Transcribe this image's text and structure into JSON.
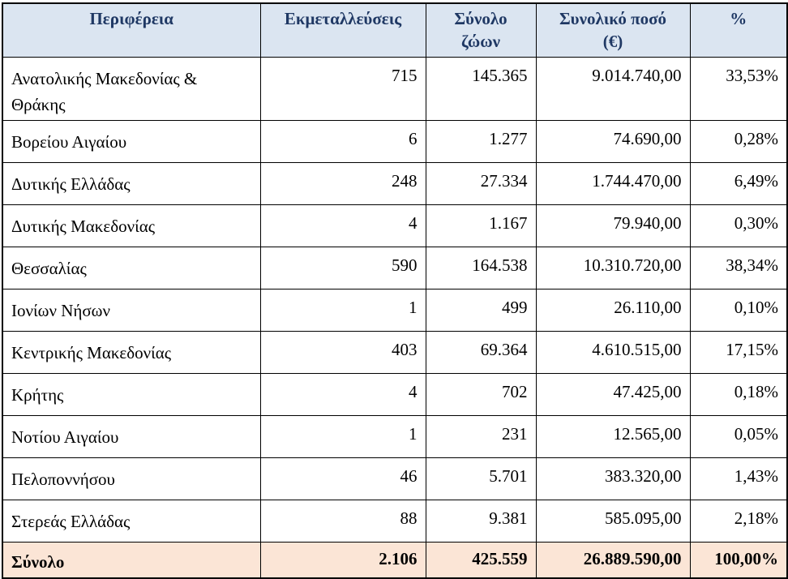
{
  "colors": {
    "header-bg": "#dbe5f1",
    "header-text": "#1f3864",
    "total-bg": "#fbe5d6",
    "border": "#000000"
  },
  "table": {
    "headers": [
      [
        "Περιφέρεια"
      ],
      [
        "Εκμεταλλεύσεις"
      ],
      [
        "Σύνολο",
        "ζώων"
      ],
      [
        "Συνολικό ποσό",
        "(€)"
      ],
      [
        "%"
      ]
    ],
    "rows": [
      {
        "region": "Ανατολικής Μακεδονίας & Θράκης",
        "farms": "715",
        "animals": "145.365",
        "amount": "9.014.740,00",
        "pct": "33,53%"
      },
      {
        "region": "Βορείου Αιγαίου",
        "farms": "6",
        "animals": "1.277",
        "amount": "74.690,00",
        "pct": "0,28%"
      },
      {
        "region": "Δυτικής Ελλάδας",
        "farms": "248",
        "animals": "27.334",
        "amount": "1.744.470,00",
        "pct": "6,49%"
      },
      {
        "region": "Δυτικής Μακεδονίας",
        "farms": "4",
        "animals": "1.167",
        "amount": "79.940,00",
        "pct": "0,30%"
      },
      {
        "region": "Θεσσαλίας",
        "farms": "590",
        "animals": "164.538",
        "amount": "10.310.720,00",
        "pct": "38,34%"
      },
      {
        "region": "Ιονίων Νήσων",
        "farms": "1",
        "animals": "499",
        "amount": "26.110,00",
        "pct": "0,10%"
      },
      {
        "region": "Κεντρικής Μακεδονίας",
        "farms": "403",
        "animals": "69.364",
        "amount": "4.610.515,00",
        "pct": "17,15%"
      },
      {
        "region": "Κρήτης",
        "farms": "4",
        "animals": "702",
        "amount": "47.425,00",
        "pct": "0,18%"
      },
      {
        "region": "Νοτίου Αιγαίου",
        "farms": "1",
        "animals": "231",
        "amount": "12.565,00",
        "pct": "0,05%"
      },
      {
        "region": "Πελοποννήσου",
        "farms": "46",
        "animals": "5.701",
        "amount": "383.320,00",
        "pct": "1,43%"
      },
      {
        "region": "Στερεάς Ελλάδας",
        "farms": "88",
        "animals": "9.381",
        "amount": "585.095,00",
        "pct": "2,18%"
      }
    ],
    "total": {
      "region": "Σύνολο",
      "farms": "2.106",
      "animals": "425.559",
      "amount": "26.889.590,00",
      "pct": "100,00%"
    }
  }
}
